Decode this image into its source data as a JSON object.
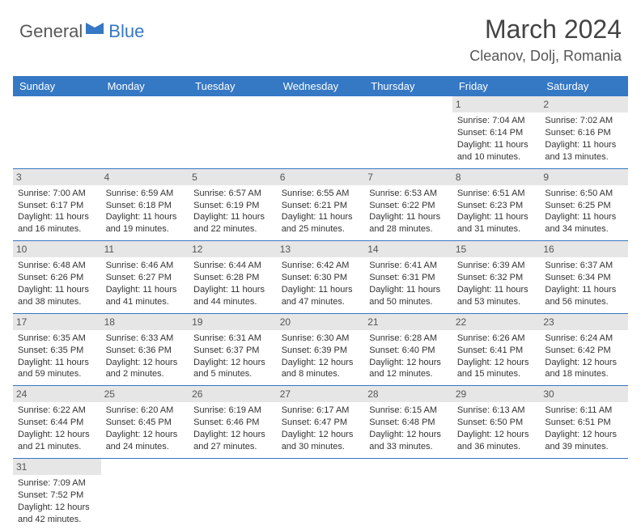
{
  "logo": {
    "general": "General",
    "blue": "Blue",
    "icon_color": "#3578c4"
  },
  "title": "March 2024",
  "location": "Cleanov, Dolj, Romania",
  "colors": {
    "header_bg": "#3578c4",
    "header_text": "#ffffff",
    "daynum_bg": "#e6e6e6",
    "daynum_text": "#555555",
    "cell_border": "#3578c4",
    "body_text": "#333333",
    "title_text": "#444444"
  },
  "typography": {
    "title_fontsize": 32,
    "location_fontsize": 18,
    "th_fontsize": 13,
    "cell_fontsize": 11
  },
  "weekdays": [
    "Sunday",
    "Monday",
    "Tuesday",
    "Wednesday",
    "Thursday",
    "Friday",
    "Saturday"
  ],
  "weeks": [
    [
      {
        "day": null
      },
      {
        "day": null
      },
      {
        "day": null
      },
      {
        "day": null
      },
      {
        "day": null
      },
      {
        "day": "1",
        "sunrise": "Sunrise: 7:04 AM",
        "sunset": "Sunset: 6:14 PM",
        "daylight1": "Daylight: 11 hours",
        "daylight2": "and 10 minutes."
      },
      {
        "day": "2",
        "sunrise": "Sunrise: 7:02 AM",
        "sunset": "Sunset: 6:16 PM",
        "daylight1": "Daylight: 11 hours",
        "daylight2": "and 13 minutes."
      }
    ],
    [
      {
        "day": "3",
        "sunrise": "Sunrise: 7:00 AM",
        "sunset": "Sunset: 6:17 PM",
        "daylight1": "Daylight: 11 hours",
        "daylight2": "and 16 minutes."
      },
      {
        "day": "4",
        "sunrise": "Sunrise: 6:59 AM",
        "sunset": "Sunset: 6:18 PM",
        "daylight1": "Daylight: 11 hours",
        "daylight2": "and 19 minutes."
      },
      {
        "day": "5",
        "sunrise": "Sunrise: 6:57 AM",
        "sunset": "Sunset: 6:19 PM",
        "daylight1": "Daylight: 11 hours",
        "daylight2": "and 22 minutes."
      },
      {
        "day": "6",
        "sunrise": "Sunrise: 6:55 AM",
        "sunset": "Sunset: 6:21 PM",
        "daylight1": "Daylight: 11 hours",
        "daylight2": "and 25 minutes."
      },
      {
        "day": "7",
        "sunrise": "Sunrise: 6:53 AM",
        "sunset": "Sunset: 6:22 PM",
        "daylight1": "Daylight: 11 hours",
        "daylight2": "and 28 minutes."
      },
      {
        "day": "8",
        "sunrise": "Sunrise: 6:51 AM",
        "sunset": "Sunset: 6:23 PM",
        "daylight1": "Daylight: 11 hours",
        "daylight2": "and 31 minutes."
      },
      {
        "day": "9",
        "sunrise": "Sunrise: 6:50 AM",
        "sunset": "Sunset: 6:25 PM",
        "daylight1": "Daylight: 11 hours",
        "daylight2": "and 34 minutes."
      }
    ],
    [
      {
        "day": "10",
        "sunrise": "Sunrise: 6:48 AM",
        "sunset": "Sunset: 6:26 PM",
        "daylight1": "Daylight: 11 hours",
        "daylight2": "and 38 minutes."
      },
      {
        "day": "11",
        "sunrise": "Sunrise: 6:46 AM",
        "sunset": "Sunset: 6:27 PM",
        "daylight1": "Daylight: 11 hours",
        "daylight2": "and 41 minutes."
      },
      {
        "day": "12",
        "sunrise": "Sunrise: 6:44 AM",
        "sunset": "Sunset: 6:28 PM",
        "daylight1": "Daylight: 11 hours",
        "daylight2": "and 44 minutes."
      },
      {
        "day": "13",
        "sunrise": "Sunrise: 6:42 AM",
        "sunset": "Sunset: 6:30 PM",
        "daylight1": "Daylight: 11 hours",
        "daylight2": "and 47 minutes."
      },
      {
        "day": "14",
        "sunrise": "Sunrise: 6:41 AM",
        "sunset": "Sunset: 6:31 PM",
        "daylight1": "Daylight: 11 hours",
        "daylight2": "and 50 minutes."
      },
      {
        "day": "15",
        "sunrise": "Sunrise: 6:39 AM",
        "sunset": "Sunset: 6:32 PM",
        "daylight1": "Daylight: 11 hours",
        "daylight2": "and 53 minutes."
      },
      {
        "day": "16",
        "sunrise": "Sunrise: 6:37 AM",
        "sunset": "Sunset: 6:34 PM",
        "daylight1": "Daylight: 11 hours",
        "daylight2": "and 56 minutes."
      }
    ],
    [
      {
        "day": "17",
        "sunrise": "Sunrise: 6:35 AM",
        "sunset": "Sunset: 6:35 PM",
        "daylight1": "Daylight: 11 hours",
        "daylight2": "and 59 minutes."
      },
      {
        "day": "18",
        "sunrise": "Sunrise: 6:33 AM",
        "sunset": "Sunset: 6:36 PM",
        "daylight1": "Daylight: 12 hours",
        "daylight2": "and 2 minutes."
      },
      {
        "day": "19",
        "sunrise": "Sunrise: 6:31 AM",
        "sunset": "Sunset: 6:37 PM",
        "daylight1": "Daylight: 12 hours",
        "daylight2": "and 5 minutes."
      },
      {
        "day": "20",
        "sunrise": "Sunrise: 6:30 AM",
        "sunset": "Sunset: 6:39 PM",
        "daylight1": "Daylight: 12 hours",
        "daylight2": "and 8 minutes."
      },
      {
        "day": "21",
        "sunrise": "Sunrise: 6:28 AM",
        "sunset": "Sunset: 6:40 PM",
        "daylight1": "Daylight: 12 hours",
        "daylight2": "and 12 minutes."
      },
      {
        "day": "22",
        "sunrise": "Sunrise: 6:26 AM",
        "sunset": "Sunset: 6:41 PM",
        "daylight1": "Daylight: 12 hours",
        "daylight2": "and 15 minutes."
      },
      {
        "day": "23",
        "sunrise": "Sunrise: 6:24 AM",
        "sunset": "Sunset: 6:42 PM",
        "daylight1": "Daylight: 12 hours",
        "daylight2": "and 18 minutes."
      }
    ],
    [
      {
        "day": "24",
        "sunrise": "Sunrise: 6:22 AM",
        "sunset": "Sunset: 6:44 PM",
        "daylight1": "Daylight: 12 hours",
        "daylight2": "and 21 minutes."
      },
      {
        "day": "25",
        "sunrise": "Sunrise: 6:20 AM",
        "sunset": "Sunset: 6:45 PM",
        "daylight1": "Daylight: 12 hours",
        "daylight2": "and 24 minutes."
      },
      {
        "day": "26",
        "sunrise": "Sunrise: 6:19 AM",
        "sunset": "Sunset: 6:46 PM",
        "daylight1": "Daylight: 12 hours",
        "daylight2": "and 27 minutes."
      },
      {
        "day": "27",
        "sunrise": "Sunrise: 6:17 AM",
        "sunset": "Sunset: 6:47 PM",
        "daylight1": "Daylight: 12 hours",
        "daylight2": "and 30 minutes."
      },
      {
        "day": "28",
        "sunrise": "Sunrise: 6:15 AM",
        "sunset": "Sunset: 6:48 PM",
        "daylight1": "Daylight: 12 hours",
        "daylight2": "and 33 minutes."
      },
      {
        "day": "29",
        "sunrise": "Sunrise: 6:13 AM",
        "sunset": "Sunset: 6:50 PM",
        "daylight1": "Daylight: 12 hours",
        "daylight2": "and 36 minutes."
      },
      {
        "day": "30",
        "sunrise": "Sunrise: 6:11 AM",
        "sunset": "Sunset: 6:51 PM",
        "daylight1": "Daylight: 12 hours",
        "daylight2": "and 39 minutes."
      }
    ],
    [
      {
        "day": "31",
        "sunrise": "Sunrise: 7:09 AM",
        "sunset": "Sunset: 7:52 PM",
        "daylight1": "Daylight: 12 hours",
        "daylight2": "and 42 minutes."
      },
      {
        "day": null
      },
      {
        "day": null
      },
      {
        "day": null
      },
      {
        "day": null
      },
      {
        "day": null
      },
      {
        "day": null
      }
    ]
  ]
}
